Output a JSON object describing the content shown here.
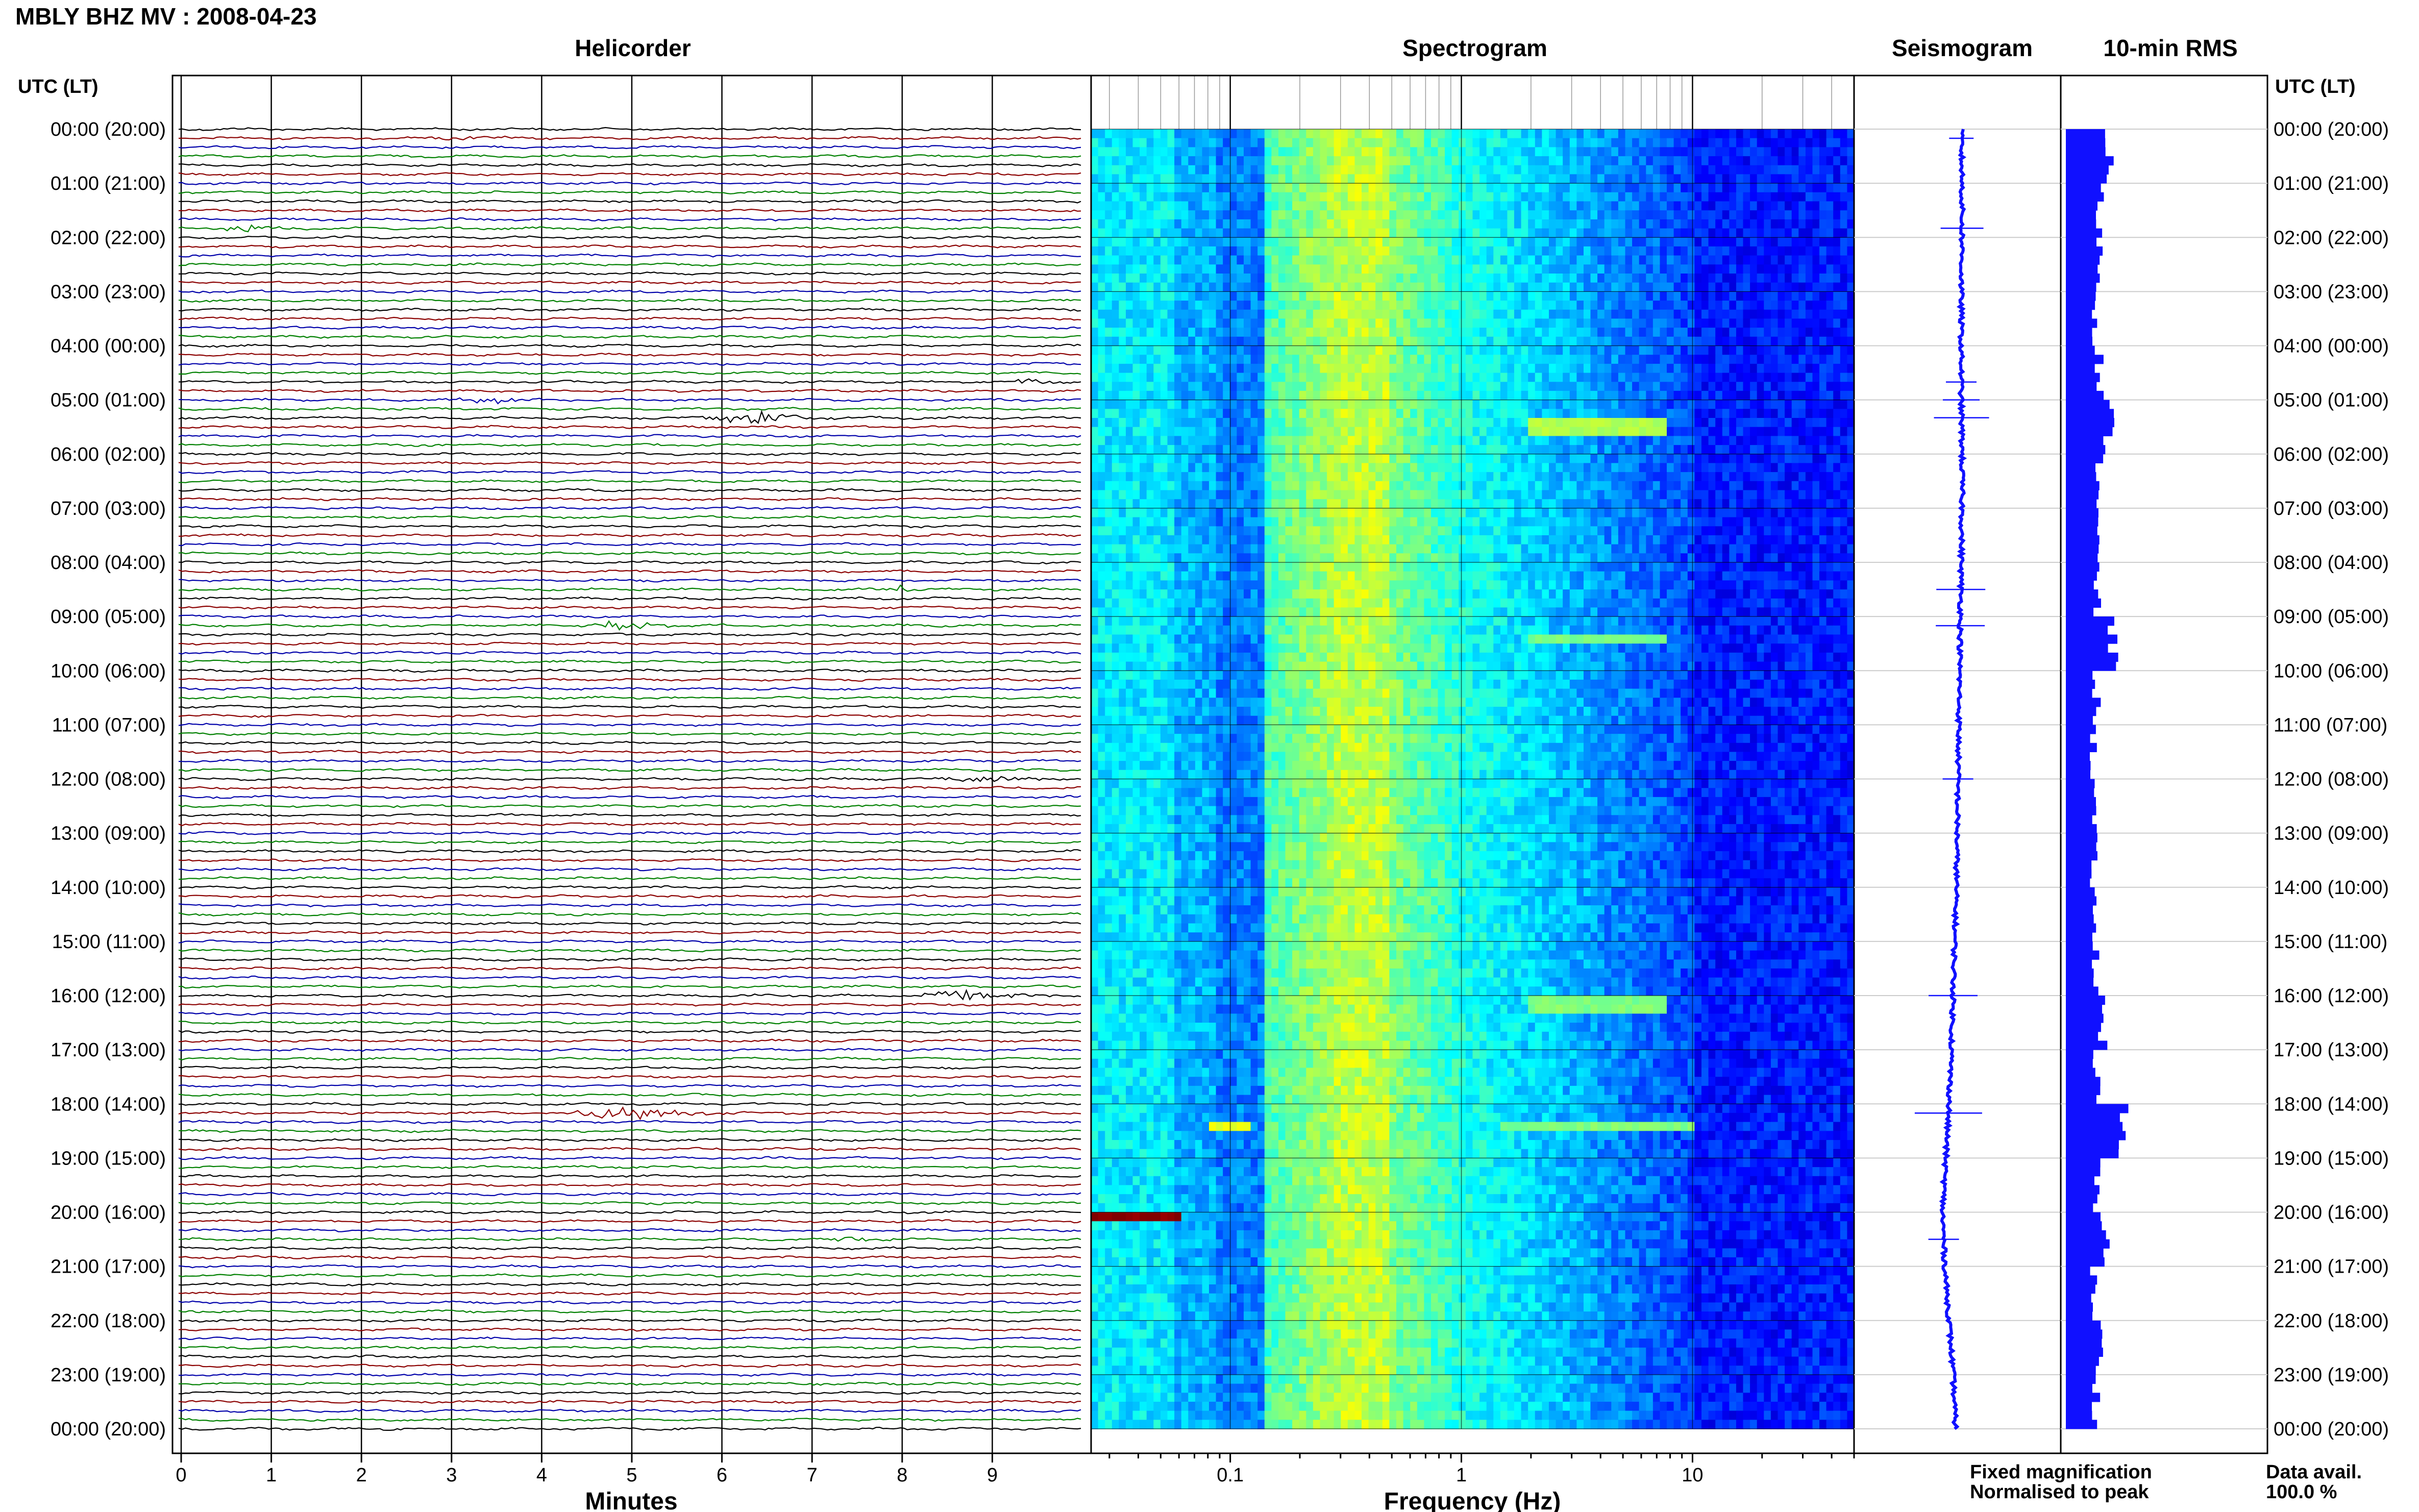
{
  "page": {
    "title": "MBLY BHZ MV : 2008-04-23",
    "utc_header_left": "UTC (LT)",
    "utc_header_right": "UTC (LT)"
  },
  "panels": {
    "helicorder": "Helicorder",
    "spectrogram": "Spectrogram",
    "seismogram": "Seismogram",
    "rms": "10-min RMS"
  },
  "axes": {
    "minutes_label": "Minutes",
    "frequency_label": "Frequency (Hz)"
  },
  "legend": {
    "fixed": "Fixed magnification",
    "fixed_color": "#1010ff",
    "normalised": "Normalised to peak",
    "normalised_color": "#ff1010"
  },
  "data_avail": {
    "label": "Data avail.",
    "value": "100.0 %"
  },
  "chart_data": {
    "type": "heatmap",
    "time_labels": [
      "00:00 (20:00)",
      "01:00 (21:00)",
      "02:00 (22:00)",
      "03:00 (23:00)",
      "04:00 (00:00)",
      "05:00 (01:00)",
      "06:00 (02:00)",
      "07:00 (03:00)",
      "08:00 (04:00)",
      "09:00 (05:00)",
      "10:00 (06:00)",
      "11:00 (07:00)",
      "12:00 (08:00)",
      "13:00 (09:00)",
      "14:00 (10:00)",
      "15:00 (11:00)",
      "16:00 (12:00)",
      "17:00 (13:00)",
      "18:00 (14:00)",
      "19:00 (15:00)",
      "20:00 (16:00)",
      "21:00 (17:00)",
      "22:00 (18:00)",
      "23:00 (19:00)",
      "00:00 (20:00)"
    ],
    "minute_ticks": [
      "0",
      "1",
      "2",
      "3",
      "4",
      "5",
      "6",
      "7",
      "8",
      "9"
    ],
    "minute_range": [
      0,
      10
    ],
    "freq_ticks": [
      "0.1",
      "1",
      "10"
    ],
    "freq_range": [
      0.025,
      50
    ],
    "freq_scale": "log",
    "helicorder_colors": [
      "#000000",
      "#8b0000",
      "#0000aa",
      "#008000"
    ],
    "traces_per_hour": 6,
    "helicorder_events": [
      {
        "hour": 1.83,
        "minute": 0.8,
        "amp": 5,
        "width": 0.5,
        "color": "#008000"
      },
      {
        "hour": 5.0,
        "minute": 3.5,
        "amp": 4,
        "width": 0.9,
        "color": "#000000"
      },
      {
        "hour": 5.33,
        "minute": 6.4,
        "amp": 7,
        "width": 1.0,
        "color": "#8b0000"
      },
      {
        "hour": 8.5,
        "minute": 8.0,
        "amp": 6,
        "width": 0.3,
        "color": "#008000"
      },
      {
        "hour": 9.17,
        "minute": 4.9,
        "amp": 6,
        "width": 0.8,
        "color": "#008000"
      },
      {
        "hour": 12.0,
        "minute": 9.0,
        "amp": 3,
        "width": 0.9,
        "color": "#000000"
      },
      {
        "hour": 16.0,
        "minute": 8.7,
        "amp": 6,
        "width": 0.9,
        "color": "#000000"
      },
      {
        "hour": 18.17,
        "minute": 5.0,
        "amp": 9,
        "width": 1.2,
        "color": "#8b0000"
      },
      {
        "hour": 20.5,
        "minute": 7.5,
        "amp": 3,
        "width": 0.7,
        "color": "#008000"
      },
      {
        "hour": 4.67,
        "minute": 9.4,
        "amp": 3,
        "width": 0.4,
        "color": "#008000"
      },
      {
        "hour": 0.17,
        "minute": 3.2,
        "amp": 2,
        "width": 0.8,
        "color": "#0000aa"
      }
    ],
    "rms_per_hour": [
      0.7,
      0.55,
      0.55,
      0.5,
      0.55,
      0.7,
      0.55,
      0.5,
      0.5,
      0.75,
      0.5,
      0.45,
      0.45,
      0.45,
      0.45,
      0.5,
      0.6,
      0.5,
      0.9,
      0.5,
      0.65,
      0.45,
      0.55,
      0.5
    ],
    "seismogram_drift": [
      0,
      0.1,
      0.1,
      0,
      0,
      0,
      0.1,
      0.1,
      0,
      -0.1,
      -0.2,
      -0.3,
      -0.4,
      -0.5,
      -0.6,
      -0.8,
      -1.0,
      -1.2,
      -1.5,
      -1.9,
      -2.3,
      -2.0,
      -1.5,
      -1.0,
      -0.7
    ],
    "spectrogram_bright_events": [
      {
        "hour": 20.0,
        "fmin": 0.025,
        "fmax": 0.06,
        "level": 1.0
      },
      {
        "hour": 18.3,
        "fmin": 0.08,
        "fmax": 0.12,
        "level": 0.6
      },
      {
        "hour": 5.4,
        "fmin": 2.0,
        "fmax": 8.0,
        "level": 0.55
      },
      {
        "hour": 9.3,
        "fmin": 2.0,
        "fmax": 8.0,
        "level": 0.5
      },
      {
        "hour": 16.1,
        "fmin": 2.0,
        "fmax": 8.0,
        "level": 0.5
      },
      {
        "hour": 18.3,
        "fmin": 1.5,
        "fmax": 10.0,
        "level": 0.5
      }
    ]
  }
}
